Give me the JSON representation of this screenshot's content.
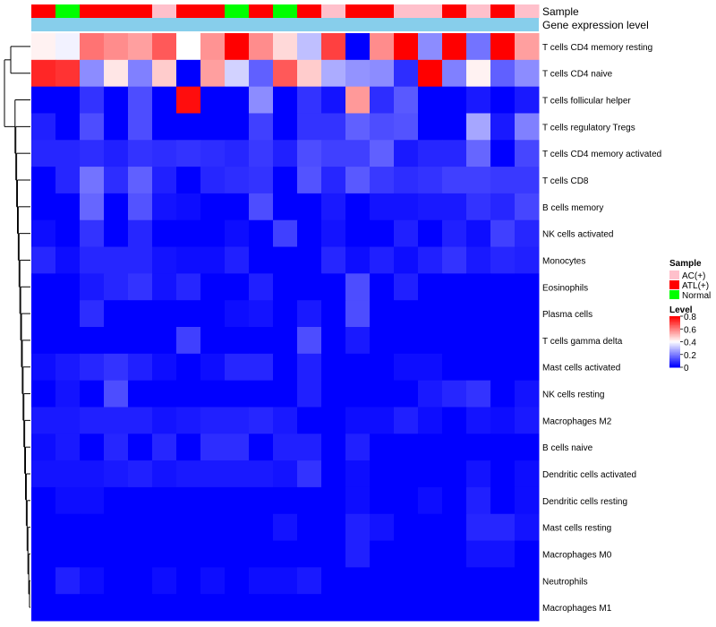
{
  "chart_data": {
    "type": "heatmap",
    "annotation_labels": {
      "sample": "Sample",
      "expression": "Gene expression level"
    },
    "sample_groups": [
      "ATL(+)",
      "Normal",
      "ATL(+)",
      "ATL(+)",
      "ATL(+)",
      "AC(+)",
      "ATL(+)",
      "ATL(+)",
      "Normal",
      "ATL(+)",
      "Normal",
      "ATL(+)",
      "AC(+)",
      "ATL(+)",
      "ATL(+)",
      "AC(+)",
      "AC(+)",
      "ATL(+)",
      "AC(+)",
      "ATL(+)",
      "AC(+)"
    ],
    "rows": [
      {
        "label": "T cells CD4 memory resting",
        "values": [
          0.42,
          0.38,
          0.62,
          0.58,
          0.55,
          0.66,
          0.4,
          0.57,
          0.8,
          0.58,
          0.46,
          0.3,
          0.7,
          0.0,
          0.58,
          0.8,
          0.22,
          0.8,
          0.18,
          0.8,
          0.55
        ]
      },
      {
        "label": "T cells CD4 naive",
        "values": [
          0.74,
          0.72,
          0.22,
          0.44,
          0.2,
          0.48,
          0.0,
          0.55,
          0.33,
          0.15,
          0.66,
          0.48,
          0.27,
          0.23,
          0.22,
          0.07,
          0.8,
          0.2,
          0.42,
          0.15,
          0.22
        ]
      },
      {
        "label": "T cells follicular helper",
        "values": [
          0.0,
          0.0,
          0.08,
          0.0,
          0.12,
          0.0,
          0.78,
          0.0,
          0.0,
          0.22,
          0.0,
          0.08,
          0.03,
          0.56,
          0.07,
          0.14,
          0.0,
          0.0,
          0.04,
          0.0,
          0.04
        ]
      },
      {
        "label": "T cells regulatory  Tregs",
        "values": [
          0.05,
          0.0,
          0.12,
          0.0,
          0.12,
          0.0,
          0.0,
          0.0,
          0.0,
          0.1,
          0.0,
          0.08,
          0.08,
          0.15,
          0.12,
          0.13,
          0.0,
          0.0,
          0.26,
          0.04,
          0.2
        ]
      },
      {
        "label": "T cells CD4 memory activated",
        "values": [
          0.06,
          0.06,
          0.07,
          0.05,
          0.08,
          0.07,
          0.08,
          0.07,
          0.06,
          0.09,
          0.05,
          0.12,
          0.1,
          0.1,
          0.15,
          0.04,
          0.06,
          0.06,
          0.16,
          0.0,
          0.11
        ]
      },
      {
        "label": "T cells CD8",
        "values": [
          0.0,
          0.06,
          0.18,
          0.07,
          0.15,
          0.05,
          0.0,
          0.06,
          0.07,
          0.08,
          0.0,
          0.13,
          0.06,
          0.14,
          0.09,
          0.07,
          0.08,
          0.1,
          0.1,
          0.09,
          0.09
        ]
      },
      {
        "label": "B cells memory",
        "values": [
          0.0,
          0.0,
          0.16,
          0.0,
          0.13,
          0.03,
          0.02,
          0.0,
          0.0,
          0.12,
          0.0,
          0.0,
          0.04,
          0.0,
          0.03,
          0.03,
          0.04,
          0.04,
          0.08,
          0.06,
          0.11
        ]
      },
      {
        "label": "NK cells activated",
        "values": [
          0.02,
          0.0,
          0.08,
          0.0,
          0.06,
          0.0,
          0.0,
          0.0,
          0.02,
          0.0,
          0.1,
          0.0,
          0.03,
          0.0,
          0.0,
          0.05,
          0.0,
          0.05,
          0.02,
          0.1,
          0.06
        ]
      },
      {
        "label": "Monocytes",
        "values": [
          0.06,
          0.02,
          0.06,
          0.06,
          0.06,
          0.03,
          0.02,
          0.02,
          0.05,
          0.0,
          0.0,
          0.0,
          0.06,
          0.02,
          0.05,
          0.02,
          0.05,
          0.08,
          0.04,
          0.06,
          0.05
        ]
      },
      {
        "label": "Eosinophils",
        "values": [
          0.0,
          0.0,
          0.04,
          0.06,
          0.08,
          0.03,
          0.06,
          0.0,
          0.0,
          0.05,
          0.0,
          0.0,
          0.0,
          0.12,
          0.0,
          0.05,
          0.0,
          0.0,
          0.0,
          0.0,
          0.0
        ]
      },
      {
        "label": "Plasma cells",
        "values": [
          0.0,
          0.0,
          0.07,
          0.0,
          0.0,
          0.0,
          0.0,
          0.0,
          0.02,
          0.03,
          0.0,
          0.04,
          0.0,
          0.12,
          0.0,
          0.0,
          0.0,
          0.0,
          0.0,
          0.0,
          0.0
        ]
      },
      {
        "label": "T cells gamma delta",
        "values": [
          0.0,
          0.0,
          0.0,
          0.0,
          0.0,
          0.0,
          0.1,
          0.0,
          0.0,
          0.0,
          0.0,
          0.12,
          0.0,
          0.04,
          0.0,
          0.0,
          0.0,
          0.0,
          0.0,
          0.0,
          0.0
        ]
      },
      {
        "label": "Mast cells activated",
        "values": [
          0.02,
          0.04,
          0.06,
          0.08,
          0.05,
          0.02,
          0.0,
          0.02,
          0.06,
          0.06,
          0.0,
          0.05,
          0.0,
          0.0,
          0.0,
          0.02,
          0.02,
          0.0,
          0.0,
          0.0,
          0.0
        ]
      },
      {
        "label": "NK cells resting",
        "values": [
          0.0,
          0.03,
          0.0,
          0.12,
          0.0,
          0.0,
          0.0,
          0.0,
          0.0,
          0.0,
          0.0,
          0.05,
          0.0,
          0.0,
          0.0,
          0.0,
          0.04,
          0.06,
          0.08,
          0.0,
          0.03
        ]
      },
      {
        "label": "Macrophages M2",
        "values": [
          0.04,
          0.04,
          0.05,
          0.05,
          0.05,
          0.03,
          0.04,
          0.05,
          0.05,
          0.06,
          0.04,
          0.0,
          0.0,
          0.02,
          0.02,
          0.05,
          0.02,
          0.0,
          0.03,
          0.02,
          0.04
        ]
      },
      {
        "label": "B cells naive",
        "values": [
          0.02,
          0.04,
          0.0,
          0.06,
          0.0,
          0.06,
          0.0,
          0.07,
          0.07,
          0.0,
          0.05,
          0.05,
          0.0,
          0.05,
          0.0,
          0.0,
          0.0,
          0.0,
          0.0,
          0.0,
          0.0
        ]
      },
      {
        "label": "Dendritic cells activated",
        "values": [
          0.03,
          0.03,
          0.03,
          0.04,
          0.05,
          0.03,
          0.04,
          0.04,
          0.04,
          0.04,
          0.03,
          0.08,
          0.0,
          0.02,
          0.0,
          0.0,
          0.0,
          0.0,
          0.03,
          0.0,
          0.02
        ]
      },
      {
        "label": "Dendritic cells resting",
        "values": [
          0.0,
          0.02,
          0.02,
          0.0,
          0.0,
          0.0,
          0.0,
          0.0,
          0.0,
          0.0,
          0.0,
          0.0,
          0.0,
          0.02,
          0.0,
          0.0,
          0.02,
          0.0,
          0.05,
          0.0,
          0.02
        ]
      },
      {
        "label": "Mast cells resting",
        "values": [
          0.0,
          0.0,
          0.0,
          0.0,
          0.0,
          0.0,
          0.0,
          0.0,
          0.0,
          0.0,
          0.03,
          0.0,
          0.0,
          0.05,
          0.03,
          0.0,
          0.0,
          0.0,
          0.06,
          0.06,
          0.03
        ]
      },
      {
        "label": "Macrophages M0",
        "values": [
          0.0,
          0.0,
          0.0,
          0.0,
          0.0,
          0.0,
          0.0,
          0.0,
          0.0,
          0.0,
          0.0,
          0.0,
          0.0,
          0.05,
          0.0,
          0.0,
          0.0,
          0.0,
          0.03,
          0.03,
          0.0
        ]
      },
      {
        "label": "Neutrophils",
        "values": [
          0.0,
          0.05,
          0.02,
          0.0,
          0.0,
          0.02,
          0.0,
          0.02,
          0.0,
          0.02,
          0.02,
          0.04,
          0.0,
          0.0,
          0.0,
          0.0,
          0.0,
          0.0,
          0.0,
          0.0,
          0.0
        ]
      },
      {
        "label": "Macrophages M1",
        "values": [
          0.0,
          0.0,
          0.0,
          0.0,
          0.0,
          0.0,
          0.0,
          0.0,
          0.0,
          0.0,
          0.0,
          0.0,
          0.0,
          0.0,
          0.0,
          0.0,
          0.0,
          0.0,
          0.0,
          0.0,
          0.0
        ]
      }
    ],
    "color_scale": {
      "min": 0,
      "max": 0.8,
      "low": "#0000ff",
      "mid": "#ffffff",
      "high": "#ff0000"
    },
    "legend": {
      "sample_title": "Sample",
      "sample_items": [
        {
          "label": "AC(+)",
          "color": "#ffc0cb"
        },
        {
          "label": "ATL(+)",
          "color": "#ff0000"
        },
        {
          "label": "Normal",
          "color": "#00ff00"
        }
      ],
      "level_title": "Level",
      "level_ticks": [
        "0.8",
        "0.6",
        "0.4",
        "0.2",
        "0"
      ],
      "level_tick_values": [
        0.8,
        0.6,
        0.4,
        0.2,
        0
      ]
    },
    "expression_bar_color": "#87ceeb"
  }
}
